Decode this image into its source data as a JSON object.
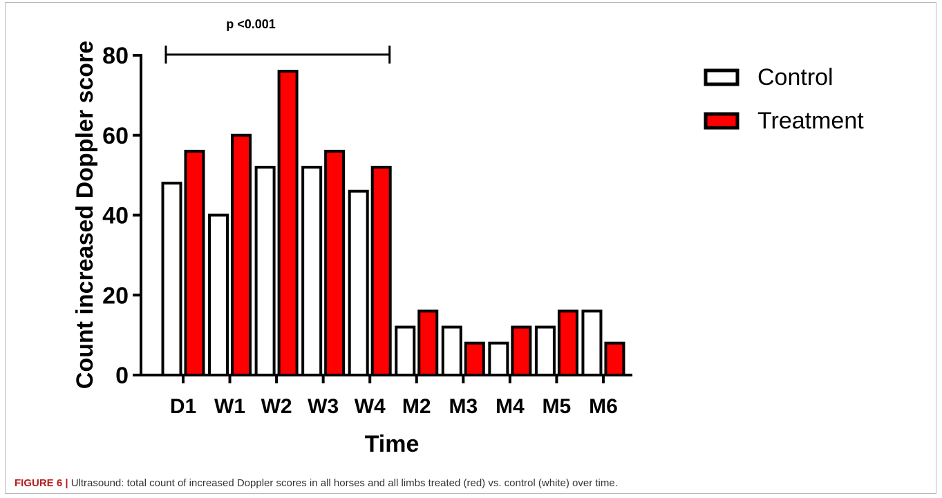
{
  "chart_data": {
    "type": "bar",
    "categories": [
      "D1",
      "W1",
      "W2",
      "W3",
      "W4",
      "M2",
      "M3",
      "M4",
      "M5",
      "M6"
    ],
    "series": [
      {
        "name": "Control",
        "values": [
          48,
          40,
          52,
          52,
          46,
          12,
          12,
          8,
          12,
          16
        ],
        "color": "#ffffff"
      },
      {
        "name": "Treatment",
        "values": [
          56,
          60,
          76,
          56,
          52,
          16,
          8,
          12,
          16,
          8
        ],
        "color": "#ff0000"
      }
    ],
    "xlabel": "Time",
    "ylabel": "Count increased Doppler score",
    "ylim": [
      0,
      80
    ],
    "yticks": [
      0,
      20,
      40,
      60,
      80
    ],
    "grid": false,
    "legend_position": "top-right",
    "annotation": {
      "text": "p <0.001",
      "from_category": "D1",
      "to_category": "W4"
    }
  },
  "caption": {
    "label": "FIGURE 6 |",
    "text": " Ultrasound: total count of increased Doppler scores in all horses and all limbs treated (red) vs. control (white) over time."
  }
}
